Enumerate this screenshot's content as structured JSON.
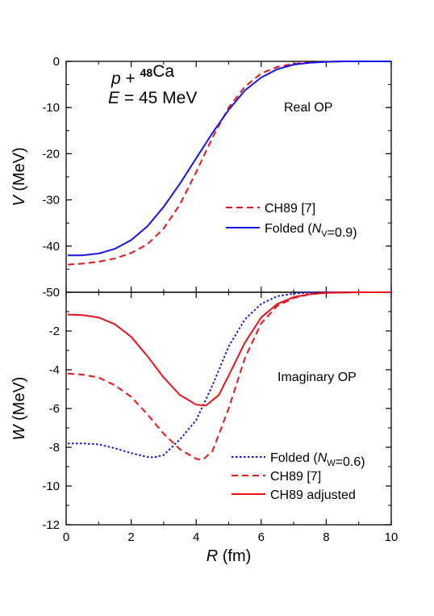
{
  "chart_data": [
    {
      "type": "line",
      "panel": "top",
      "title": "",
      "annotation_lines": [
        {
          "parts": [
            {
              "t": "p",
              "style": "italic"
            },
            {
              "t": " + "
            },
            {
              "t": "48",
              "style": "sup"
            },
            {
              "t": "Ca"
            }
          ]
        },
        {
          "parts": [
            {
              "t": "E",
              "style": "italic"
            },
            {
              "t": " = 45 MeV"
            }
          ]
        }
      ],
      "panel_label": "Real OP",
      "xlabel": "",
      "ylabel": {
        "sym": "V",
        "unit": " (MeV)"
      },
      "xlim": [
        0,
        10
      ],
      "ylim": [
        -50,
        0
      ],
      "yticks": [
        0,
        -10,
        -20,
        -30,
        -40,
        -50
      ],
      "ytick_labels": [
        "0",
        "-10",
        "-20",
        "-30",
        "-40",
        "-50"
      ],
      "legend_placement": "center-right",
      "series": [
        {
          "legend": [
            {
              "t": "CH89  [7]"
            }
          ],
          "color": "#e8141a",
          "dash": "dashed",
          "x": [
            0.05,
            0.5,
            1,
            1.5,
            2,
            2.5,
            3,
            3.5,
            4,
            4.5,
            5,
            5.5,
            6,
            6.5,
            7,
            7.5,
            8,
            8.5,
            9,
            9.5,
            10
          ],
          "y": [
            -44.0,
            -43.8,
            -43.4,
            -42.7,
            -41.5,
            -39.6,
            -36.2,
            -31.0,
            -24.0,
            -16.5,
            -10.0,
            -5.5,
            -2.6,
            -1.2,
            -0.5,
            -0.2,
            -0.1,
            0,
            0,
            0,
            0
          ]
        },
        {
          "legend": [
            {
              "t": "Folded ("
            },
            {
              "t": "N",
              "style": "italic"
            },
            {
              "t": "V",
              "style": "sub"
            },
            {
              "t": "=0.9)"
            }
          ],
          "color": "#1414e6",
          "dash": "solid",
          "x": [
            0.05,
            0.5,
            1,
            1.5,
            2,
            2.5,
            3,
            3.5,
            4,
            4.5,
            5,
            5.5,
            6,
            6.5,
            7,
            7.5,
            8,
            8.5,
            9,
            9.5,
            10
          ],
          "y": [
            -42.0,
            -42.0,
            -41.6,
            -40.6,
            -38.7,
            -35.7,
            -31.5,
            -26.5,
            -21.0,
            -15.5,
            -10.5,
            -6.3,
            -3.5,
            -1.7,
            -0.7,
            -0.3,
            -0.1,
            0,
            0,
            0,
            0
          ]
        }
      ]
    },
    {
      "type": "line",
      "panel": "bottom",
      "title": "",
      "panel_label": "Imaginary OP",
      "xlabel": {
        "sym": "R",
        "unit": " (fm)"
      },
      "ylabel": {
        "sym": "W",
        "unit": " (MeV)"
      },
      "xlim": [
        0,
        10
      ],
      "ylim": [
        -12,
        0
      ],
      "xticks": [
        0,
        2,
        4,
        6,
        8,
        10
      ],
      "xtick_labels": [
        "0",
        "2",
        "4",
        "6",
        "8",
        "10"
      ],
      "yticks": [
        -2,
        -4,
        -6,
        -8,
        -10,
        -12
      ],
      "ytick_labels": [
        "-2",
        "-4",
        "-6",
        "-8",
        "-10",
        "-12"
      ],
      "legend_placement": "bottom-right",
      "series": [
        {
          "legend": [
            {
              "t": "Folded ("
            },
            {
              "t": "N",
              "style": "italic"
            },
            {
              "t": "W",
              "style": "sub"
            },
            {
              "t": "=0.6)"
            }
          ],
          "color": "#1414e6",
          "dash": "dotted",
          "x": [
            0.05,
            0.5,
            1,
            1.5,
            2,
            2.5,
            2.7,
            3,
            3.5,
            4,
            4.5,
            5,
            5.5,
            6,
            6.5,
            7,
            7.5,
            8,
            9,
            10
          ],
          "y": [
            -7.8,
            -7.8,
            -7.85,
            -8.05,
            -8.3,
            -8.5,
            -8.52,
            -8.4,
            -7.6,
            -6.6,
            -4.8,
            -2.8,
            -1.4,
            -0.6,
            -0.2,
            -0.07,
            -0.02,
            0,
            0,
            0
          ]
        },
        {
          "legend": [
            {
              "t": "CH89  [7]"
            }
          ],
          "color": "#e8141a",
          "dash": "dashed",
          "x": [
            0.05,
            0.5,
            1,
            1.5,
            2,
            2.5,
            3,
            3.5,
            4,
            4.2,
            4.5,
            5,
            5.5,
            6,
            6.5,
            7,
            7.5,
            8,
            9,
            10
          ],
          "y": [
            -4.2,
            -4.25,
            -4.4,
            -4.8,
            -5.4,
            -6.3,
            -7.3,
            -8.1,
            -8.6,
            -8.65,
            -8.2,
            -6.0,
            -3.4,
            -1.6,
            -0.7,
            -0.3,
            -0.1,
            -0.03,
            0,
            0
          ]
        },
        {
          "legend": [
            {
              "t": "CH89 adjusted"
            }
          ],
          "color": "#e8141a",
          "dash": "solid",
          "x": [
            0.05,
            0.5,
            1,
            1.5,
            2,
            2.5,
            3,
            3.5,
            4,
            4.3,
            4.7,
            5,
            5.5,
            6,
            6.5,
            7,
            7.5,
            8,
            9,
            10
          ],
          "y": [
            -1.15,
            -1.18,
            -1.3,
            -1.65,
            -2.3,
            -3.3,
            -4.4,
            -5.3,
            -5.8,
            -5.85,
            -5.3,
            -4.3,
            -2.6,
            -1.3,
            -0.6,
            -0.25,
            -0.1,
            -0.03,
            0,
            0
          ]
        }
      ]
    }
  ]
}
